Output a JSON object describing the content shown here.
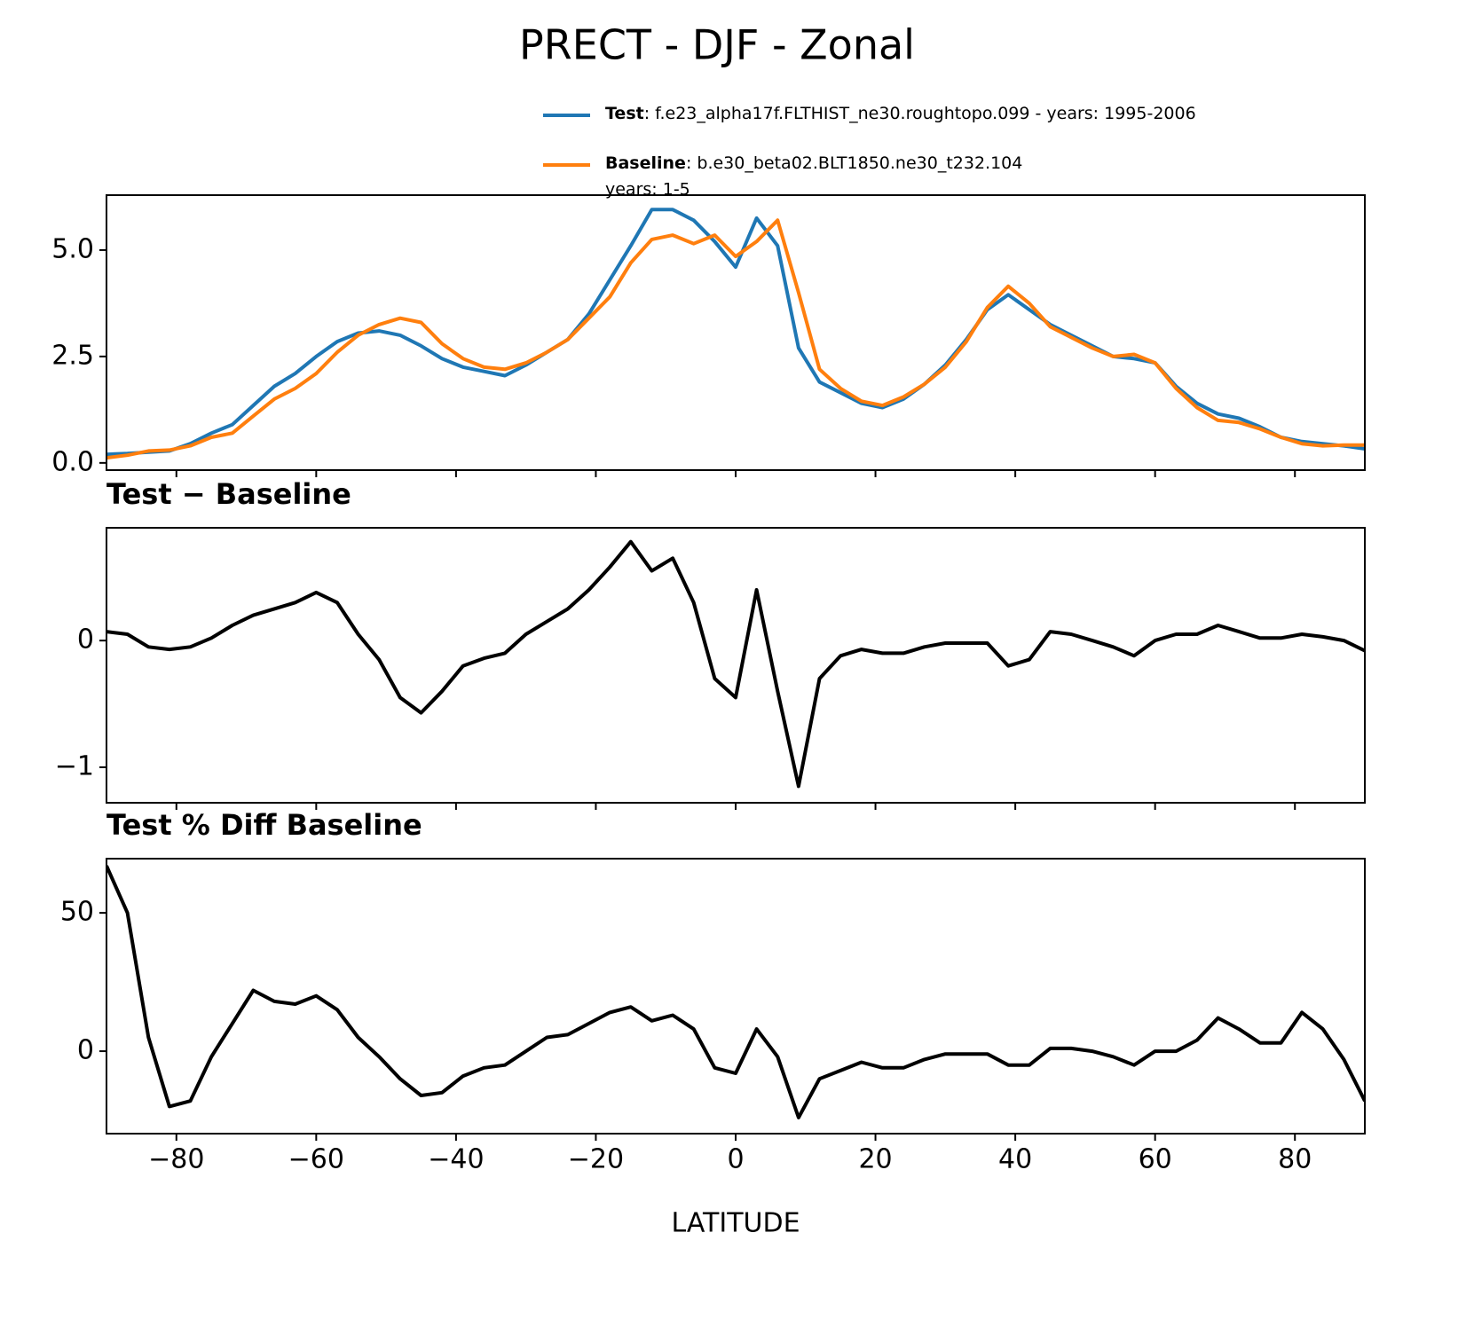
{
  "title": "PRECT - DJF - Zonal",
  "xlabel": "LATITUDE",
  "chart_data": [
    {
      "type": "line",
      "x": [
        -90,
        -87,
        -84,
        -81,
        -78,
        -75,
        -72,
        -69,
        -66,
        -63,
        -60,
        -57,
        -54,
        -51,
        -48,
        -45,
        -42,
        -39,
        -36,
        -33,
        -30,
        -27,
        -24,
        -21,
        -18,
        -15,
        -12,
        -9,
        -6,
        -3,
        0,
        3,
        6,
        9,
        12,
        15,
        18,
        21,
        24,
        27,
        30,
        33,
        36,
        39,
        42,
        45,
        48,
        51,
        54,
        57,
        60,
        63,
        66,
        69,
        72,
        75,
        78,
        81,
        84,
        87,
        90
      ],
      "series": [
        {
          "name": "Test",
          "description": [
            ": f.e23_alpha17f.FLTHIST_ne30.roughtopo.099 - years: 1995-2006"
          ],
          "color": "#1f77b4",
          "values": [
            0.2,
            0.22,
            0.25,
            0.28,
            0.45,
            0.7,
            0.9,
            1.35,
            1.8,
            2.1,
            2.5,
            2.85,
            3.05,
            3.1,
            3.0,
            2.75,
            2.45,
            2.25,
            2.15,
            2.05,
            2.3,
            2.6,
            2.9,
            3.5,
            4.3,
            5.1,
            5.95,
            5.95,
            5.7,
            5.2,
            4.6,
            5.75,
            5.1,
            2.7,
            1.9,
            1.65,
            1.4,
            1.3,
            1.5,
            1.85,
            2.3,
            2.9,
            3.6,
            3.95,
            3.6,
            3.25,
            3.0,
            2.75,
            2.5,
            2.45,
            2.35,
            1.8,
            1.4,
            1.15,
            1.05,
            0.85,
            0.6,
            0.5,
            0.45,
            0.4,
            0.33
          ]
        },
        {
          "name": "Baseline",
          "description": [
            ": b.e30_beta02.BLT1850.ne30_t232.104",
            "years: 1-5"
          ],
          "color": "#ff7f0e",
          "values": [
            0.12,
            0.18,
            0.28,
            0.3,
            0.4,
            0.6,
            0.7,
            1.1,
            1.5,
            1.75,
            2.1,
            2.6,
            3.0,
            3.25,
            3.4,
            3.3,
            2.8,
            2.45,
            2.25,
            2.2,
            2.35,
            2.6,
            2.9,
            3.4,
            3.9,
            4.7,
            5.25,
            5.35,
            5.15,
            5.35,
            4.85,
            5.2,
            5.7,
            4.0,
            2.2,
            1.75,
            1.45,
            1.35,
            1.55,
            1.85,
            2.25,
            2.85,
            3.65,
            4.15,
            3.75,
            3.2,
            2.95,
            2.7,
            2.5,
            2.55,
            2.35,
            1.75,
            1.3,
            1.0,
            0.95,
            0.8,
            0.6,
            0.45,
            0.4,
            0.42,
            0.42
          ]
        }
      ],
      "xlim": [
        -90,
        90
      ],
      "xticks": [
        -80,
        -60,
        -40,
        -20,
        0,
        20,
        40,
        60,
        80
      ],
      "ylim": [
        -0.17,
        6.29
      ],
      "yticks": [
        {
          "value": 0,
          "label": "0.0"
        },
        {
          "value": 2.5,
          "label": "2.5"
        },
        {
          "value": 5,
          "label": "5.0"
        }
      ]
    },
    {
      "type": "line",
      "title": "Test − Baseline",
      "x": [
        -90,
        -87,
        -84,
        -81,
        -78,
        -75,
        -72,
        -69,
        -66,
        -63,
        -60,
        -57,
        -54,
        -51,
        -48,
        -45,
        -42,
        -39,
        -36,
        -33,
        -30,
        -27,
        -24,
        -21,
        -18,
        -15,
        -12,
        -9,
        -6,
        -3,
        0,
        3,
        6,
        9,
        12,
        15,
        18,
        21,
        24,
        27,
        30,
        33,
        36,
        39,
        42,
        45,
        48,
        51,
        54,
        57,
        60,
        63,
        66,
        69,
        72,
        75,
        78,
        81,
        84,
        87,
        90
      ],
      "series": [
        {
          "color": "#000000",
          "values": [
            0.07,
            0.05,
            -0.05,
            -0.07,
            -0.05,
            0.02,
            0.12,
            0.2,
            0.25,
            0.3,
            0.38,
            0.3,
            0.05,
            -0.15,
            -0.45,
            -0.57,
            -0.4,
            -0.2,
            -0.14,
            -0.1,
            0.05,
            0.15,
            0.25,
            0.4,
            0.58,
            0.78,
            0.55,
            0.65,
            0.3,
            -0.3,
            -0.45,
            0.4,
            -0.4,
            -1.15,
            -0.3,
            -0.12,
            -0.07,
            -0.1,
            -0.1,
            -0.05,
            -0.02,
            -0.02,
            -0.02,
            -0.2,
            -0.15,
            0.07,
            0.05,
            0.0,
            -0.05,
            -0.12,
            0.0,
            0.05,
            0.05,
            0.12,
            0.07,
            0.02,
            0.02,
            0.05,
            0.03,
            0.0,
            -0.08
          ]
        }
      ],
      "xlim": [
        -90,
        90
      ],
      "xticks": [
        -80,
        -60,
        -40,
        -20,
        0,
        20,
        40,
        60,
        80
      ],
      "ylim": [
        -1.28,
        0.89
      ],
      "yticks": [
        {
          "value": -1,
          "label": "−1"
        },
        0
      ]
    },
    {
      "type": "line",
      "title": "Test % Diff Baseline",
      "x": [
        -90,
        -87,
        -84,
        -81,
        -78,
        -75,
        -72,
        -69,
        -66,
        -63,
        -60,
        -57,
        -54,
        -51,
        -48,
        -45,
        -42,
        -39,
        -36,
        -33,
        -30,
        -27,
        -24,
        -21,
        -18,
        -15,
        -12,
        -9,
        -6,
        -3,
        0,
        3,
        6,
        9,
        12,
        15,
        18,
        21,
        24,
        27,
        30,
        33,
        36,
        39,
        42,
        45,
        48,
        51,
        54,
        57,
        60,
        63,
        66,
        69,
        72,
        75,
        78,
        81,
        84,
        87,
        90
      ],
      "series": [
        {
          "color": "#000000",
          "values": [
            67,
            50,
            5,
            -20,
            -18,
            -2,
            10,
            22,
            18,
            17,
            20,
            15,
            5,
            -2,
            -10,
            -16,
            -15,
            -9,
            -6,
            -5,
            0,
            5,
            6,
            10,
            14,
            16,
            11,
            13,
            8,
            -6,
            -8,
            8,
            -2,
            -24,
            -10,
            -7,
            -4,
            -6,
            -6,
            -3,
            -1,
            -1,
            -1,
            -5,
            -5,
            1,
            1,
            0,
            -2,
            -5,
            0,
            0,
            4,
            12,
            8,
            3,
            3,
            14,
            8,
            -3,
            -18
          ]
        }
      ],
      "xlim": [
        -90,
        90
      ],
      "xticks": [
        {
          "value": -80,
          "label": "−80"
        },
        {
          "value": -60,
          "label": "−60"
        },
        {
          "value": -40,
          "label": "−40"
        },
        {
          "value": -20,
          "label": "−20"
        },
        0,
        20,
        40,
        60,
        80
      ],
      "ylim": [
        -29.8,
        69.6
      ],
      "yticks": [
        0,
        50
      ]
    }
  ]
}
